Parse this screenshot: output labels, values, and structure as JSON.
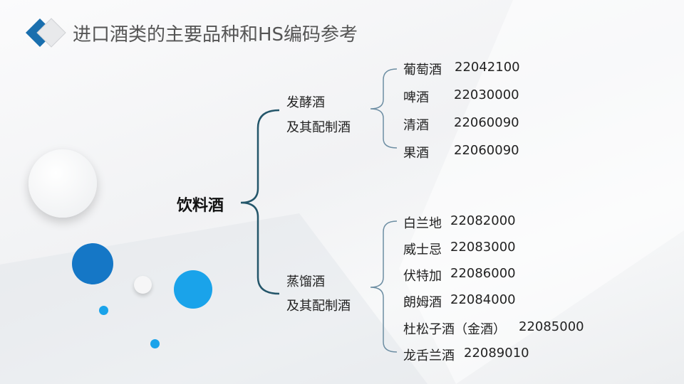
{
  "title": "进口酒类的主要品种和HS编码参考",
  "root": "饮料酒",
  "groups": [
    {
      "line1": "发酵酒",
      "line2": "及其配制酒",
      "items": [
        {
          "name": "葡萄酒",
          "code": "22042100"
        },
        {
          "name": "啤酒",
          "code": "22030000"
        },
        {
          "name": "清酒",
          "code": "22060090"
        },
        {
          "name": "果酒",
          "code": "22060090"
        }
      ]
    },
    {
      "line1": "蒸馏酒",
      "line2": "及其配制酒",
      "items": [
        {
          "name": "白兰地",
          "code": "22082000"
        },
        {
          "name": "威士忌",
          "code": "22083000"
        },
        {
          "name": "伏特加",
          "code": "22086000"
        },
        {
          "name": "朗姆酒",
          "code": "22084000"
        },
        {
          "name": "杜松子酒（金酒）",
          "code": "22085000"
        },
        {
          "name": "龙舌兰酒",
          "code": "22089010"
        }
      ]
    }
  ],
  "colors": {
    "main_brace": "#24566a",
    "sub_brace": "#6d8ea3",
    "dark_blue": "#1577c6",
    "light_blue": "#1aa3ea"
  }
}
